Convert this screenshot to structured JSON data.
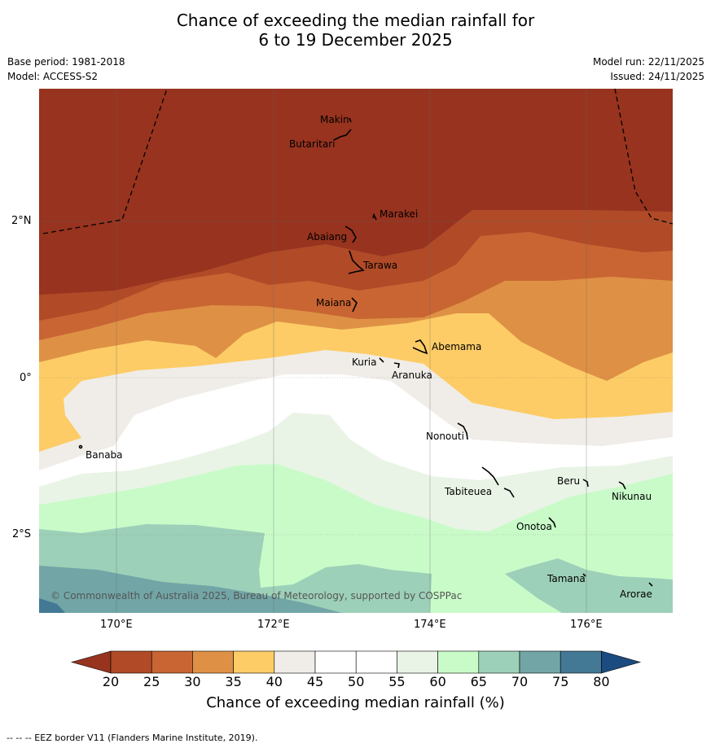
{
  "header": {
    "title_line1": "Chance of exceeding the median rainfall for",
    "title_line2": "6 to 19 December 2025",
    "base_period": "Base period: 1981-2018",
    "model": "Model: ACCESS-S2",
    "model_run": "Model run: 22/11/2025",
    "issued": "Issued: 24/11/2025"
  },
  "map": {
    "x_ticks": [
      "170°E",
      "172°E",
      "174°E",
      "176°E"
    ],
    "y_ticks": [
      "2°N",
      "0°",
      "2°S"
    ],
    "copyright": "© Commonwealth of Australia 2025, Bureau of Meteorology, supported by COSPPac",
    "islands": [
      "Makin",
      "Butaritari",
      "Marakei",
      "Abaiang",
      "Tarawa",
      "Maiana",
      "Abemama",
      "Kuria",
      "Aranuka",
      "Banaba",
      "Nonouti",
      "Tabiteuea",
      "Beru",
      "Nikunau",
      "Onotoa",
      "Tamana",
      "Arorae"
    ]
  },
  "colorbar": {
    "ticks": [
      "20",
      "25",
      "30",
      "35",
      "40",
      "45",
      "50",
      "55",
      "60",
      "65",
      "70",
      "75",
      "80"
    ],
    "colors": {
      "below_20": "#97331f",
      "c20_25": "#b04a27",
      "c25_30": "#c96533",
      "c30_35": "#de9145",
      "c35_40": "#fdcc66",
      "c40_45": "#f0ede8",
      "c45_50": "#ffffff",
      "c50_55": "#ffffff",
      "c55_60": "#e9f4e6",
      "c60_65": "#c9fbc9",
      "c65_70": "#9dd0b8",
      "c70_75": "#72a5a6",
      "c75_80": "#437994",
      "above_80": "#1c4b80"
    },
    "label": "Chance of exceeding median rainfall (%)"
  },
  "footer": {
    "eez_note": "--  --  -- EEZ border V11 (Flanders Marine Institute, 2019)."
  }
}
